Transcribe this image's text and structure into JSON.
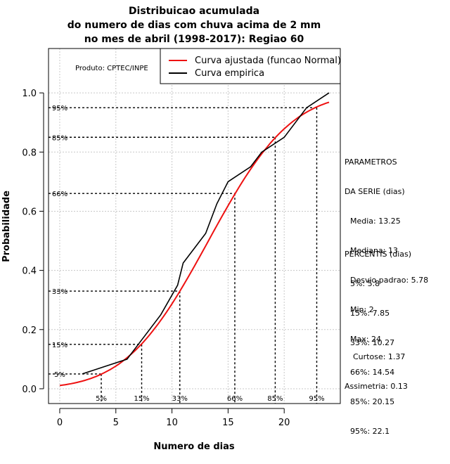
{
  "chart_data": {
    "type": "line",
    "title": [
      "Distribuicao acumulada",
      "do numero de dias com chuva acima de 2 mm",
      "no mes de abril (1998-2017): Regiao 60"
    ],
    "xlabel": "Numero de dias",
    "ylabel": "Probabilidade",
    "xlim": [
      -1,
      25
    ],
    "ylim": [
      -0.05,
      1.15
    ],
    "x_ticks": [
      0,
      5,
      10,
      15,
      20
    ],
    "y_ticks": [
      0.0,
      0.2,
      0.4,
      0.6,
      0.8,
      1.0
    ],
    "y_tick_labels": [
      "0.0",
      "0.2",
      "0.4",
      "0.6",
      "0.8",
      "1.0"
    ],
    "grid": true,
    "legend": {
      "position": "top-right",
      "entries": [
        {
          "label": "Curva ajustada (funcao Normal)",
          "color": "#ee1111"
        },
        {
          "label": "Curva empirica",
          "color": "#000000"
        }
      ]
    },
    "credit": "Produto: CPTEC/INPE",
    "series": [
      {
        "name": "Curva ajustada (funcao Normal)",
        "color": "#ee1111",
        "kind": "normal_cdf",
        "mean": 13.25,
        "sd": 5.78,
        "x_range": [
          0,
          24
        ]
      },
      {
        "name": "Curva empirica",
        "color": "#000000",
        "x": [
          2,
          4,
          6,
          7,
          9,
          10.5,
          11,
          13,
          14,
          15,
          17,
          18,
          20,
          22,
          24
        ],
        "y": [
          0.05,
          0.075,
          0.1,
          0.15,
          0.25,
          0.35,
          0.425,
          0.525,
          0.625,
          0.7,
          0.75,
          0.8,
          0.85,
          0.95,
          1.0
        ]
      }
    ],
    "percentile_markers": [
      {
        "label": "5%",
        "p": 0.05,
        "x": 3.7
      },
      {
        "label": "15%",
        "p": 0.15,
        "x": 7.3
      },
      {
        "label": "33%",
        "p": 0.33,
        "x": 10.7
      },
      {
        "label": "66%",
        "p": 0.66,
        "x": 15.6
      },
      {
        "label": "85%",
        "p": 0.85,
        "x": 19.2
      },
      {
        "label": "95%",
        "p": 0.95,
        "x": 22.9
      }
    ]
  },
  "side_panel": {
    "parametros": {
      "title_line1": "PARAMETROS",
      "title_line2": "DA SERIE (dias)",
      "media": "Media: 13.25",
      "mediana": "Mediana: 13",
      "desvio": "Desvio padrao: 5.78",
      "min": "Min: 2",
      "max": "Max: 24"
    },
    "percentis": {
      "title": "PERCENTIS (dias)",
      "p5": "5%: 5.8",
      "p15": "15%: 7.85",
      "p33": "33%: 10.27",
      "p66": "66%: 14.54",
      "p85": "85%: 20.15",
      "p95": "95%: 22.1"
    },
    "curtose": "Curtose: 1.37",
    "assimetria": "Assimetria: 0.13"
  }
}
